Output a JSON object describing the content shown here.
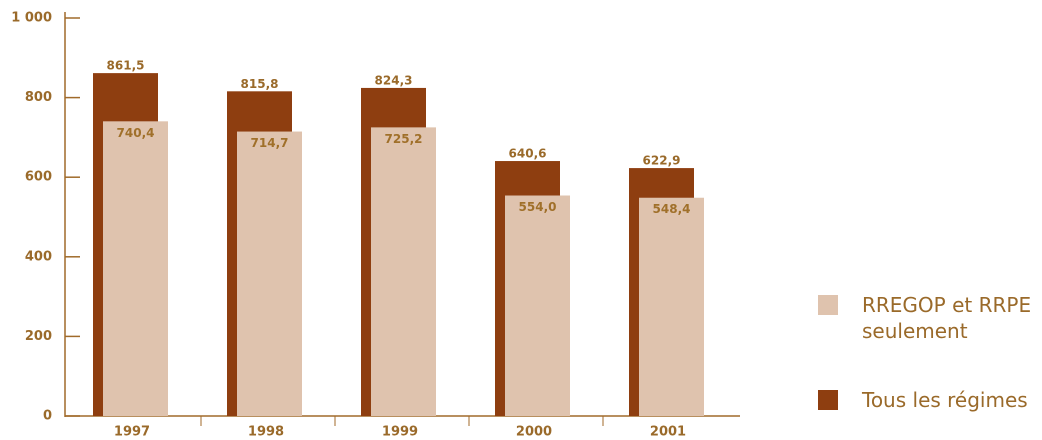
{
  "chart_data": {
    "type": "bar",
    "categories": [
      "1997",
      "1998",
      "1999",
      "2000",
      "2001"
    ],
    "series": [
      {
        "name": "RREGOP et RRPE seulement",
        "color": "#dfc3ae",
        "values": [
          740.4,
          714.7,
          725.2,
          554.0,
          548.4
        ],
        "value_labels": [
          "740,4",
          "714,7",
          "725,2",
          "554,0",
          "548,4"
        ]
      },
      {
        "name": "Tous les régimes",
        "color": "#8e3e10",
        "values": [
          861.5,
          815.8,
          824.3,
          640.6,
          622.9
        ],
        "value_labels": [
          "861,5",
          "815,8",
          "824,3",
          "640,6",
          "622,9"
        ]
      }
    ],
    "ylim": [
      0,
      1000
    ],
    "yticks": [
      0,
      200,
      400,
      600,
      800,
      {
        "value": 1000,
        "label": "1 000"
      }
    ]
  }
}
